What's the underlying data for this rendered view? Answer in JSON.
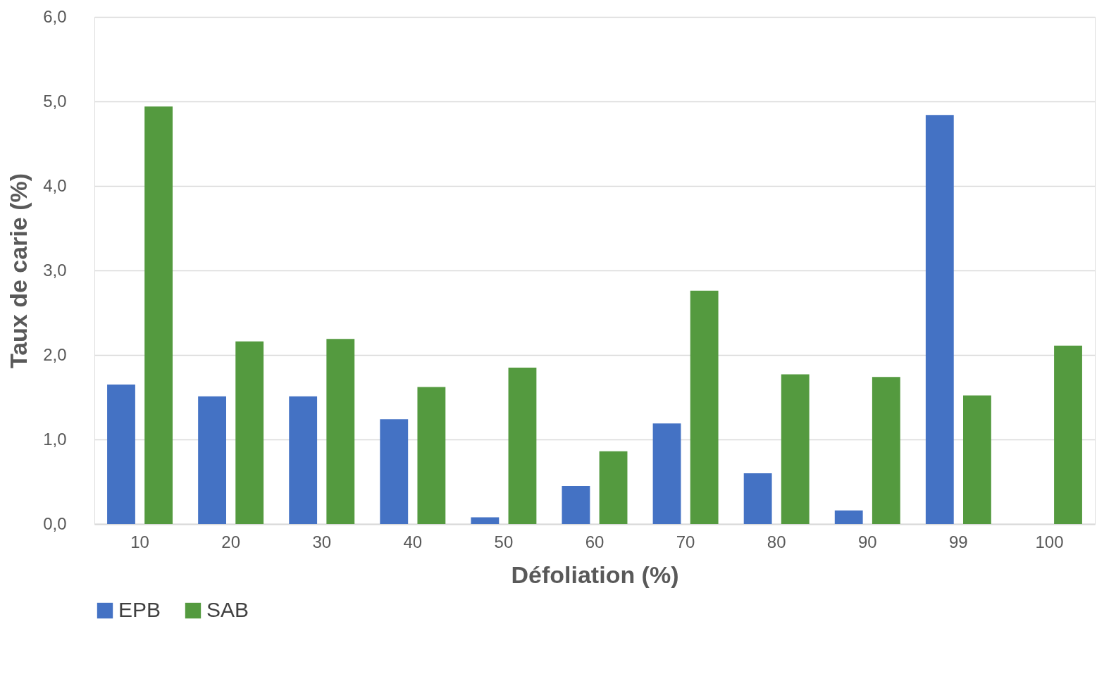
{
  "chart_data": {
    "type": "bar",
    "xlabel": "Défoliation (%)",
    "ylabel": "Taux de carie (%)",
    "categories": [
      "10",
      "20",
      "30",
      "40",
      "50",
      "60",
      "70",
      "80",
      "90",
      "99",
      "100"
    ],
    "series": [
      {
        "name": "EPB",
        "color": "#4472c4",
        "values": [
          1.65,
          1.51,
          1.51,
          1.24,
          0.08,
          0.45,
          1.19,
          0.6,
          0.16,
          4.84,
          null
        ]
      },
      {
        "name": "SAB",
        "color": "#549a3f",
        "values": [
          4.94,
          2.16,
          2.19,
          1.62,
          1.85,
          0.86,
          2.76,
          1.77,
          1.74,
          1.52,
          2.11
        ]
      }
    ],
    "ylim": [
      0,
      6
    ],
    "yticks": [
      {
        "value": 0,
        "label": "0,0"
      },
      {
        "value": 1,
        "label": "1,0"
      },
      {
        "value": 2,
        "label": "2,0"
      },
      {
        "value": 3,
        "label": "3,0"
      },
      {
        "value": 4,
        "label": "4,0"
      },
      {
        "value": 5,
        "label": "5,0"
      },
      {
        "value": 6,
        "label": "6,0"
      }
    ],
    "grid": "y",
    "legend": "bottom"
  }
}
